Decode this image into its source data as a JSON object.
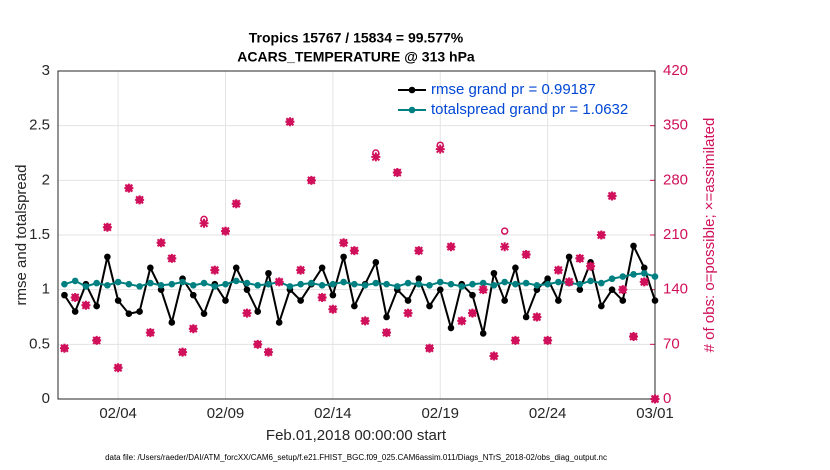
{
  "chart_data": {
    "type": "line",
    "title": "Tropics 15767 / 15834 = 99.577%",
    "subtitle": "ACARS_TEMPERATURE @ 313 hPa",
    "x_label": "Feb.01,2018 00:00:00 start",
    "y_label": "rmse and totalspread",
    "y2_label": "# of obs: o=possible; ×=assimilated",
    "footnote": "data file: /Users/raeder/DAI/ATM_forcXX/CAM6_setup/f.e21.FHIST_BGC.f09_025.CAM6assim.011/Diags_NTrS_2018-02/obs_diag_output.nc",
    "xlim": [
      0.2,
      28
    ],
    "xticks": [
      {
        "value": 3,
        "label": "02/04"
      },
      {
        "value": 8,
        "label": "02/09"
      },
      {
        "value": 13,
        "label": "02/14"
      },
      {
        "value": 18,
        "label": "02/19"
      },
      {
        "value": 23,
        "label": "02/24"
      },
      {
        "value": 28,
        "label": "03/01"
      }
    ],
    "ylim": [
      0,
      3
    ],
    "yticks": [
      0,
      0.5,
      1,
      1.5,
      2,
      2.5,
      3
    ],
    "y2lim": [
      0,
      420
    ],
    "y2ticks": [
      0,
      70,
      140,
      210,
      280,
      350,
      420
    ],
    "grid": true,
    "legend_position": "upper right",
    "legend_text_color": "#0047d6",
    "x": [
      0.5,
      1,
      1.5,
      2,
      2.5,
      3,
      3.5,
      4,
      4.5,
      5,
      5.5,
      6,
      6.5,
      7,
      7.5,
      8,
      8.5,
      9,
      9.5,
      10,
      10.5,
      11,
      11.5,
      12,
      12.5,
      13,
      13.5,
      14,
      14.5,
      15,
      15.5,
      16,
      16.5,
      17,
      17.5,
      18,
      18.5,
      19,
      19.5,
      20,
      20.5,
      21,
      21.5,
      22,
      22.5,
      23,
      23.5,
      24,
      24.5,
      25,
      25.5,
      26,
      26.5,
      27,
      27.5,
      28
    ],
    "series": [
      {
        "name": "rmse grand pr = 0.99187",
        "color": "#000000",
        "marker": "dot",
        "values": [
          0.95,
          0.8,
          1.05,
          0.85,
          1.3,
          0.9,
          0.78,
          0.8,
          1.2,
          1.0,
          0.7,
          1.1,
          0.95,
          0.78,
          1.05,
          0.9,
          1.2,
          1.0,
          0.8,
          1.15,
          0.7,
          1.0,
          0.9,
          1.05,
          1.2,
          0.95,
          1.3,
          0.85,
          1.05,
          1.25,
          0.75,
          1.0,
          0.9,
          1.1,
          0.85,
          1.0,
          0.65,
          1.05,
          0.95,
          0.6,
          1.15,
          0.9,
          1.2,
          0.75,
          1.0,
          1.1,
          0.9,
          1.3,
          1.0,
          1.25,
          0.85,
          1.0,
          0.9,
          1.4,
          1.2,
          0.9
        ]
      },
      {
        "name": "totalspread grand pr = 1.0632",
        "color": "#008080",
        "marker": "dot",
        "values": [
          1.05,
          1.08,
          1.03,
          1.06,
          1.04,
          1.07,
          1.05,
          1.03,
          1.06,
          1.04,
          1.05,
          1.07,
          1.04,
          1.06,
          1.03,
          1.05,
          1.08,
          1.06,
          1.04,
          1.05,
          1.07,
          1.03,
          1.05,
          1.06,
          1.04,
          1.05,
          1.07,
          1.05,
          1.04,
          1.06,
          1.05,
          1.03,
          1.06,
          1.05,
          1.04,
          1.07,
          1.05,
          1.03,
          1.05,
          1.06,
          1.04,
          1.07,
          1.05,
          1.06,
          1.04,
          1.05,
          1.07,
          1.06,
          1.05,
          1.08,
          1.06,
          1.1,
          1.12,
          1.14,
          1.15,
          1.12
        ]
      },
      {
        "name": "possible",
        "color": "#d0105a",
        "marker": "circle",
        "axis": "y2",
        "values": [
          65,
          130,
          120,
          75,
          220,
          40,
          270,
          255,
          85,
          200,
          180,
          60,
          90,
          230,
          165,
          215,
          250,
          110,
          70,
          60,
          150,
          355,
          165,
          280,
          130,
          115,
          200,
          190,
          100,
          315,
          85,
          290,
          110,
          190,
          65,
          325,
          195,
          100,
          110,
          140,
          55,
          215,
          75,
          185,
          105,
          75,
          165,
          150,
          180,
          170,
          210,
          260,
          140,
          80,
          150,
          0
        ]
      },
      {
        "name": "assimilated",
        "color": "#d0105a",
        "marker": "cross",
        "axis": "y2",
        "values": [
          65,
          130,
          120,
          75,
          220,
          40,
          270,
          255,
          85,
          200,
          180,
          60,
          90,
          225,
          165,
          215,
          250,
          110,
          70,
          60,
          150,
          355,
          165,
          280,
          130,
          115,
          200,
          190,
          100,
          310,
          85,
          290,
          110,
          190,
          65,
          320,
          195,
          100,
          110,
          140,
          55,
          195,
          75,
          185,
          105,
          75,
          165,
          150,
          180,
          170,
          210,
          260,
          140,
          80,
          150,
          0
        ]
      }
    ]
  }
}
